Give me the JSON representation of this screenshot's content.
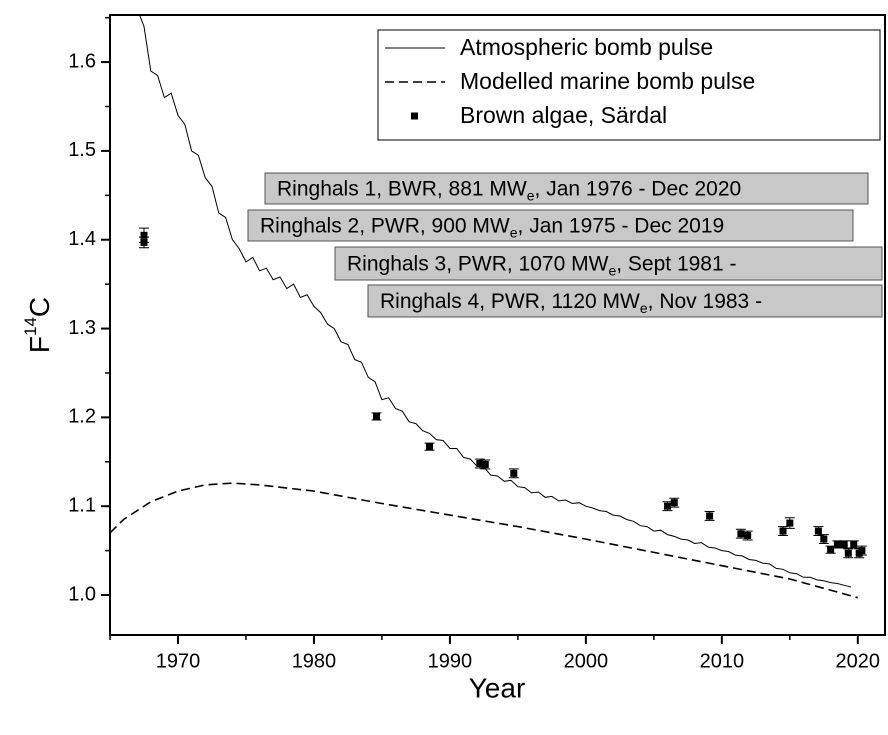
{
  "chart_data": {
    "type": "line",
    "xlabel": "Year",
    "ylabel": [
      "F",
      "14",
      "C"
    ],
    "xlim": [
      1965,
      2022
    ],
    "xticks": [
      1970,
      1980,
      1990,
      2000,
      2010,
      2020
    ],
    "xminorticks": [
      1965,
      1975,
      1985,
      1995,
      2005,
      2015
    ],
    "ylim": [
      0.955,
      1.653
    ],
    "yticks": [
      {
        "value": 1.0,
        "label": "1.0"
      },
      1.1,
      1.2,
      1.3,
      1.4,
      1.5,
      1.6
    ],
    "yminorticks": [
      1.05,
      1.15,
      1.25,
      1.35,
      1.45,
      1.55,
      1.65
    ],
    "series": [
      {
        "name": "Atmospheric bomb pulse",
        "type": "line",
        "style": "solid",
        "color": "#000000",
        "x": [
          1967,
          1967.5,
          1968,
          1968.5,
          1969,
          1969.5,
          1970,
          1970.5,
          1971,
          1971.5,
          1972,
          1972.5,
          1973,
          1973.5,
          1974,
          1974.5,
          1975,
          1975.5,
          1976,
          1976.5,
          1977,
          1977.5,
          1978,
          1978.5,
          1979,
          1979.5,
          1980,
          1980.5,
          1981,
          1981.5,
          1982,
          1982.5,
          1983,
          1983.5,
          1984,
          1984.5,
          1985,
          1985.5,
          1986,
          1986.5,
          1987,
          1987.5,
          1988,
          1988.5,
          1989,
          1989.5,
          1990,
          1990.5,
          1991,
          1991.5,
          1992,
          1992.5,
          1993,
          1993.5,
          1994,
          1994.5,
          1995,
          1995.5,
          1996,
          1996.5,
          1997,
          1997.5,
          1998,
          1998.5,
          1999,
          1999.5,
          2000,
          2000.5,
          2001,
          2001.5,
          2002,
          2002.5,
          2003,
          2003.5,
          2004,
          2004.5,
          2005,
          2005.5,
          2006,
          2006.5,
          2007,
          2007.5,
          2008,
          2008.5,
          2009,
          2009.5,
          2010,
          2010.5,
          2011,
          2011.5,
          2012,
          2012.5,
          2013,
          2013.5,
          2014,
          2014.5,
          2015,
          2015.5,
          2016,
          2016.5,
          2017,
          2017.5,
          2018,
          2018.5,
          2019,
          2019.5
        ],
        "values": [
          1.66,
          1.64,
          1.59,
          1.585,
          1.56,
          1.565,
          1.54,
          1.53,
          1.5,
          1.495,
          1.47,
          1.46,
          1.43,
          1.425,
          1.4,
          1.39,
          1.375,
          1.38,
          1.365,
          1.368,
          1.355,
          1.358,
          1.345,
          1.35,
          1.335,
          1.338,
          1.325,
          1.318,
          1.305,
          1.3,
          1.285,
          1.282,
          1.265,
          1.262,
          1.245,
          1.24,
          1.22,
          1.222,
          1.21,
          1.207,
          1.195,
          1.193,
          1.185,
          1.182,
          1.175,
          1.174,
          1.165,
          1.165,
          1.155,
          1.153,
          1.145,
          1.144,
          1.135,
          1.134,
          1.128,
          1.129,
          1.122,
          1.121,
          1.115,
          1.116,
          1.11,
          1.111,
          1.106,
          1.107,
          1.103,
          1.104,
          1.1,
          1.098,
          1.095,
          1.094,
          1.09,
          1.089,
          1.085,
          1.083,
          1.078,
          1.077,
          1.072,
          1.073,
          1.068,
          1.066,
          1.063,
          1.062,
          1.058,
          1.059,
          1.054,
          1.053,
          1.05,
          1.049,
          1.045,
          1.044,
          1.04,
          1.039,
          1.036,
          1.035,
          1.03,
          1.029,
          1.025,
          1.024,
          1.02,
          1.02,
          1.017,
          1.016,
          1.014,
          1.013,
          1.011,
          1.009
        ]
      },
      {
        "name": "Modelled marine bomb pulse",
        "type": "line",
        "style": "dashed",
        "color": "#000000",
        "x": [
          1965,
          1966,
          1968,
          1970,
          1972,
          1974,
          1976,
          1980,
          1985,
          1990,
          1995,
          2000,
          2005,
          2010,
          2015,
          2020
        ],
        "values": [
          1.07,
          1.085,
          1.105,
          1.117,
          1.124,
          1.126,
          1.124,
          1.117,
          1.103,
          1.09,
          1.077,
          1.063,
          1.048,
          1.033,
          1.018,
          0.997
        ]
      },
      {
        "name": "Brown algae, Särdal",
        "type": "scatter",
        "color": "#000000",
        "x": [
          1967.5,
          1967.5,
          1984.6,
          1988.5,
          1992.2,
          1992.6,
          1994.7,
          2006,
          2006.5,
          2009.1,
          2011.4,
          2011.9,
          2014.5,
          2015,
          2017.1,
          2017.5,
          2018,
          2018.5,
          2019,
          2019.3,
          2019.7,
          2020.1,
          2020.3
        ],
        "values": [
          1.405,
          1.397,
          1.201,
          1.167,
          1.148,
          1.147,
          1.137,
          1.1,
          1.104,
          1.089,
          1.069,
          1.067,
          1.072,
          1.081,
          1.072,
          1.063,
          1.051,
          1.057,
          1.057,
          1.047,
          1.057,
          1.047,
          1.05
        ],
        "errors": [
          0.008,
          0.006,
          0.004,
          0.004,
          0.005,
          0.005,
          0.005,
          0.005,
          0.005,
          0.005,
          0.005,
          0.005,
          0.005,
          0.006,
          0.005,
          0.005,
          0.004,
          0.004,
          0.004,
          0.005,
          0.004,
          0.005,
          0.005
        ]
      }
    ],
    "annotations": [
      [
        "Ringhals 1, BWR, 881 MW",
        "e",
        ", Jan 1976 - Dec 2020"
      ],
      [
        "Ringhals 2, PWR, 900 MW",
        "e",
        ", Jan 1975 - Dec 2019"
      ],
      [
        "Ringhals 3, PWR, 1070 MW",
        "e",
        ", Sept 1981 -"
      ],
      [
        "Ringhals 4, PWR, 1120 MW",
        "e",
        ", Nov 1983 -"
      ]
    ]
  }
}
